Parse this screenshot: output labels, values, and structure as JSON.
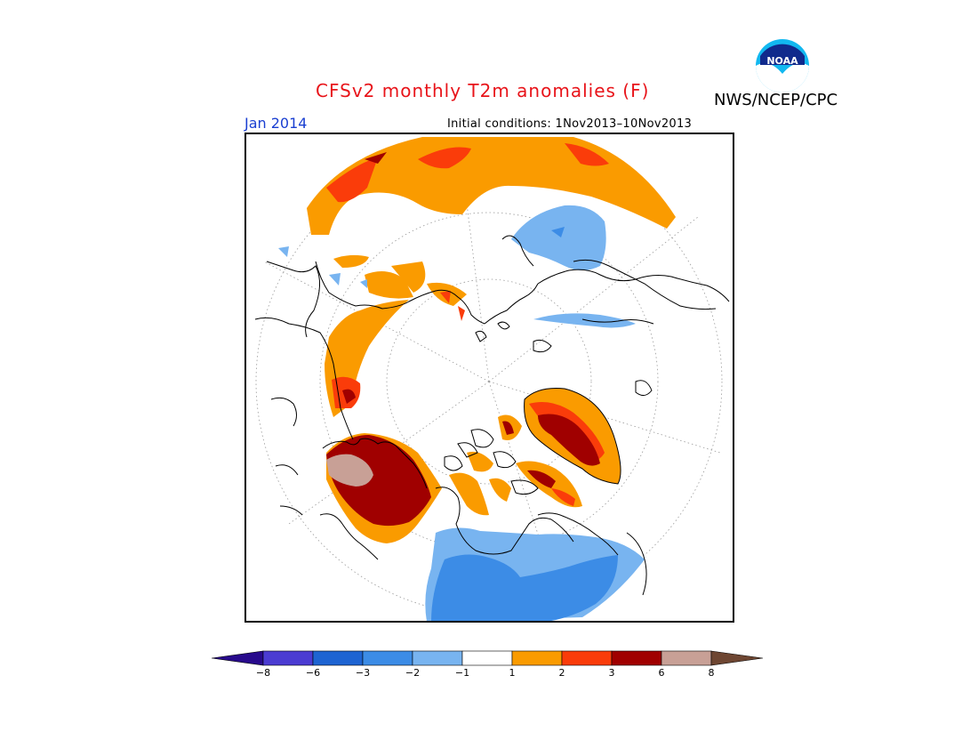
{
  "header": {
    "title": "CFSv2 monthly T2m anomalies (F)",
    "organization": "NWS/NCEP/CPC",
    "valid_month": "Jan 2014",
    "initial_conditions": "Initial conditions: 1Nov2013–10Nov2013",
    "logo_text": "NOAA"
  },
  "colorbar": {
    "ticks": [
      "−8",
      "−6",
      "−3",
      "−2",
      "−1",
      "1",
      "2",
      "3",
      "6",
      "8"
    ],
    "tick_values": [
      -8,
      -6,
      -3,
      -2,
      -1,
      1,
      2,
      3,
      6,
      8
    ],
    "colors": [
      "#280a8c",
      "#4b3cd2",
      "#1e64d2",
      "#3c8ce6",
      "#78b4f0",
      "#ffffff",
      "#fa9b00",
      "#fa3c0a",
      "#a00000",
      "#c8a096",
      "#6e4632"
    ]
  },
  "palette": {
    "ocean": "#ffffff",
    "coast": "#000000",
    "pos1": "#fa9b00",
    "pos2": "#fa3c0a",
    "pos3": "#a00000",
    "pos4": "#c8a096",
    "neg1": "#78b4f0",
    "neg2": "#3c8ce6"
  }
}
